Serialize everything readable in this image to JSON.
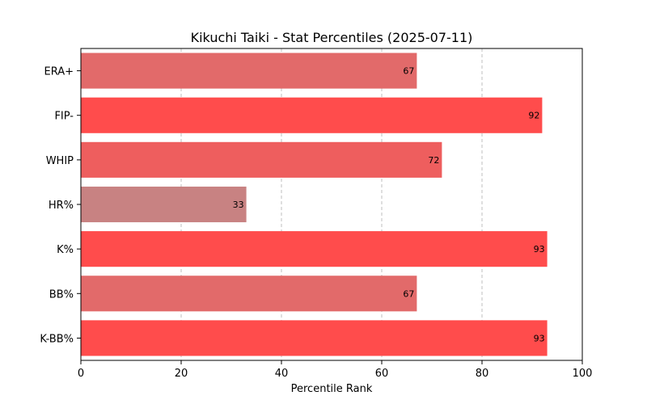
{
  "chart_data": {
    "type": "bar",
    "orientation": "horizontal",
    "title": "Kikuchi Taiki - Stat Percentiles (2025-07-11)",
    "xlabel": "Percentile Rank",
    "ylabel": "",
    "xlim": [
      0,
      100
    ],
    "xticks": [
      0,
      20,
      40,
      60,
      80,
      100
    ],
    "grid": "x-dashed",
    "categories": [
      "ERA+",
      "FIP-",
      "WHIP",
      "HR%",
      "K%",
      "BB%",
      "K-BB%"
    ],
    "values": [
      67,
      92,
      72,
      33,
      93,
      67,
      93
    ],
    "colors": [
      "#e26a6a",
      "#ff4c4c",
      "#ee5e5e",
      "#c88282",
      "#ff4c4c",
      "#e26a6a",
      "#ff4c4c"
    ]
  }
}
